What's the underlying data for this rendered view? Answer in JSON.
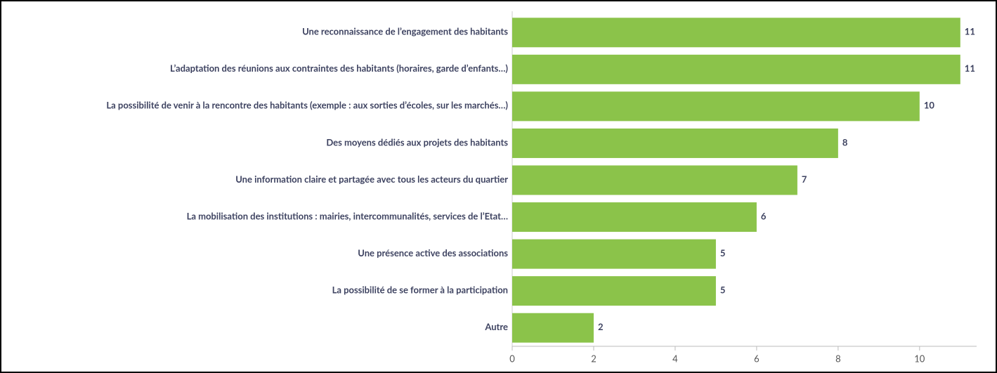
{
  "chart_data": {
    "type": "barh",
    "categories": [
      "Une reconnaissance de l’engagement des habitants",
      "L’adaptation des réunions aux contraintes des habitants (horaires, garde d’enfants…)",
      "La possibilité de venir à la rencontre des habitants (exemple : aux sorties d’écoles, sur les marchés…)",
      "Des moyens dédiés aux projets des habitants",
      "Une information claire et partagée avec tous les acteurs du quartier",
      "La mobilisation des institutions : mairies, intercommunalités, services de l’Etat…",
      "Une présence active des associations",
      "La possibilité de se former à la participation",
      "Autre"
    ],
    "values": [
      11,
      11,
      10,
      8,
      7,
      6,
      5,
      5,
      2
    ],
    "color": "#8bc34a",
    "xlim": [
      0,
      11.4
    ],
    "xticks": [
      0,
      2,
      4,
      6,
      8,
      10
    ],
    "grid": false
  }
}
